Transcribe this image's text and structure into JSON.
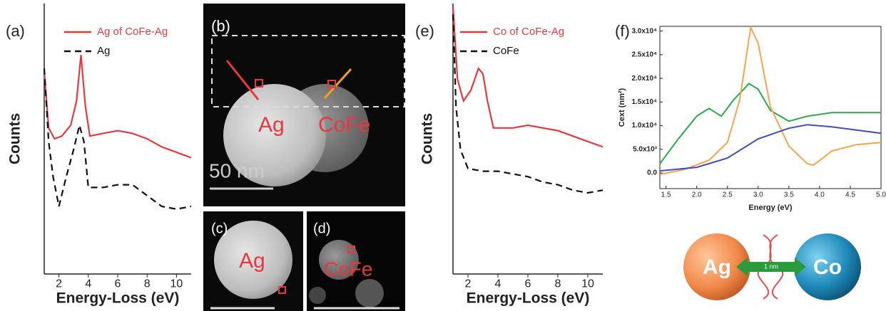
{
  "chart_data": [
    {
      "type": "line",
      "panel_label": "(a)",
      "x_label": "Energy-Loss (eV)",
      "y_label": "Counts",
      "xlim": [
        1,
        11
      ],
      "ylim": [
        0,
        100
      ],
      "xticks": [
        2,
        4,
        6,
        8,
        10
      ],
      "series": [
        {
          "name": "Ag of CoFe-Ag",
          "color": "#e8383d",
          "dashed": false,
          "x": [
            1,
            1.3,
            1.7,
            2.2,
            2.8,
            3.2,
            3.5,
            3.8,
            4.1,
            5,
            6,
            7,
            8,
            9,
            10,
            11
          ],
          "values": [
            75,
            54,
            50,
            51,
            55,
            64,
            81,
            62,
            51,
            52,
            53,
            52,
            50,
            47,
            45,
            43
          ]
        },
        {
          "name": "Ag",
          "color": "#111111",
          "dashed": true,
          "x": [
            1,
            1.3,
            1.6,
            2,
            2.5,
            3,
            3.4,
            3.7,
            4,
            5,
            6,
            7,
            8,
            9,
            10,
            11
          ],
          "values": [
            76,
            49,
            36,
            25,
            36,
            46,
            55,
            49,
            32,
            32,
            33,
            33,
            29,
            25,
            24,
            25
          ]
        }
      ]
    },
    {
      "type": "line",
      "panel_label": "(e)",
      "x_label": "Energy-Loss (eV)",
      "y_label": "Counts",
      "xlim": [
        1,
        11
      ],
      "ylim": [
        0,
        100
      ],
      "xticks": [
        2,
        4,
        6,
        8,
        10
      ],
      "series": [
        {
          "name": "Co of CoFe-Ag",
          "color": "#e8383d",
          "dashed": false,
          "x": [
            1,
            1.3,
            1.7,
            2.2,
            2.7,
            3,
            3.3,
            3.7,
            4,
            5,
            6,
            7,
            8,
            9,
            10,
            11
          ],
          "values": [
            99,
            72,
            64,
            68,
            76,
            74,
            64,
            54,
            54,
            54,
            55,
            54,
            53,
            51,
            49,
            47
          ]
        },
        {
          "name": "CoFe",
          "color": "#111111",
          "dashed": true,
          "x": [
            1,
            1.2,
            1.5,
            2,
            3,
            4,
            5,
            6,
            7,
            8,
            9,
            10,
            11
          ],
          "values": [
            96,
            62,
            46,
            39,
            38,
            38,
            37,
            36,
            34,
            33,
            31,
            30,
            31
          ]
        }
      ]
    },
    {
      "type": "line",
      "panel_label": "(f)",
      "x_label": "Energy (eV)",
      "y_label": "Cext (nm²)",
      "xlim": [
        1.4,
        5.0
      ],
      "ylim": [
        -3300,
        31000
      ],
      "xticks": [
        {
          "value": 1.5,
          "label": "1.5"
        },
        {
          "value": 2,
          "label": "2.0"
        },
        {
          "value": 2.5,
          "label": "2.5"
        },
        {
          "value": 3,
          "label": "3.0"
        },
        {
          "value": 3.5,
          "label": "3.5"
        },
        {
          "value": 4,
          "label": "4.0"
        },
        {
          "value": 4.5,
          "label": "4.5"
        },
        {
          "value": 5,
          "label": "5.0"
        }
      ],
      "yticks": [
        {
          "value": 0,
          "label": "0.0"
        },
        {
          "value": 5000,
          "label": "5.0x10³"
        },
        {
          "value": 10000,
          "label": "1.0x10⁴"
        },
        {
          "value": 15000,
          "label": "1.5x10⁴"
        },
        {
          "value": 20000,
          "label": "2.0x10⁴"
        },
        {
          "value": 25000,
          "label": "2.5x10⁴"
        },
        {
          "value": 30000,
          "label": "3.0x10⁴"
        }
      ],
      "series": [
        {
          "color": "#2aaa4a",
          "dashed": false,
          "x": [
            1.4,
            1.7,
            2.0,
            2.2,
            2.4,
            2.6,
            2.85,
            3.0,
            3.2,
            3.5,
            3.8,
            4.2,
            5.0
          ],
          "values": [
            1950,
            7200,
            12000,
            13650,
            12000,
            15450,
            18900,
            17700,
            13200,
            10950,
            12000,
            12750,
            12750
          ]
        },
        {
          "color": "#f7a44a",
          "dashed": false,
          "x": [
            1.4,
            1.8,
            2.2,
            2.5,
            2.7,
            2.88,
            3.0,
            3.2,
            3.5,
            3.8,
            3.9,
            4.2,
            4.6,
            5.0
          ],
          "values": [
            -300,
            750,
            2700,
            6450,
            15450,
            30750,
            27450,
            13950,
            5700,
            1950,
            1650,
            4650,
            6000,
            6450
          ]
        },
        {
          "color": "#3b4fc4",
          "dashed": false,
          "x": [
            1.4,
            2.0,
            2.5,
            3.0,
            3.5,
            3.8,
            4.2,
            5.0
          ],
          "values": [
            450,
            1200,
            3150,
            7200,
            9450,
            10200,
            9750,
            8400
          ]
        }
      ]
    }
  ],
  "images": [
    {
      "panel_label": "(b)",
      "labels": [
        "Ag",
        "CoFe"
      ],
      "scale_bar": "50 nm"
    },
    {
      "panel_label": "(c)",
      "labels": [
        "Ag"
      ]
    },
    {
      "panel_label": "(d)",
      "labels": [
        "CoFe"
      ]
    }
  ],
  "diagram": {
    "left": "Ag",
    "right": "Co",
    "gap": "1 nm"
  }
}
